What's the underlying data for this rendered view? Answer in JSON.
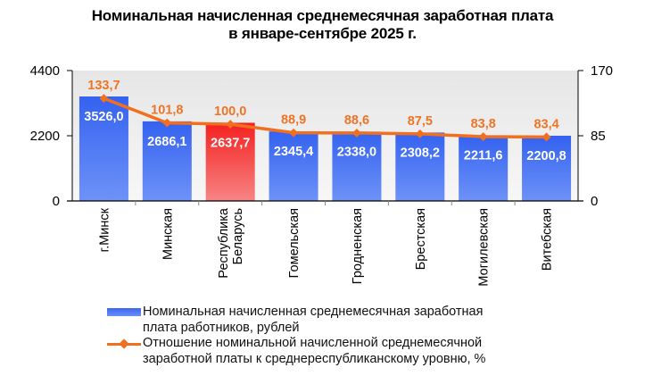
{
  "chart_data": {
    "type": "bar",
    "title": "Номинальная начисленная среднемесячная заработная плата",
    "subtitle": "в январе-сентябре 2025 г.",
    "categories": [
      "г.Минск",
      "Минская",
      "Республика Беларусь",
      "Гомельская",
      "Гродненская",
      "Брестская",
      "Могилевская",
      "Витебская"
    ],
    "category_lines": [
      [
        "г.Минск"
      ],
      [
        "Минская"
      ],
      [
        "Республика",
        "Беларусь"
      ],
      [
        "Гомельская"
      ],
      [
        "Гродненская"
      ],
      [
        "Брестская"
      ],
      [
        "Могилевская"
      ],
      [
        "Витебская"
      ]
    ],
    "series": [
      {
        "name": "Номинальная начисленная среднемесячная заработная плата работников, рублей",
        "legend_lines": [
          "Номинальная начисленная среднемесячная заработная",
          "плата работников, рублей"
        ],
        "type": "bar",
        "axis": "left",
        "values": [
          3526.0,
          2686.1,
          2637.7,
          2345.4,
          2338.0,
          2308.2,
          2211.6,
          2200.8
        ],
        "labels": [
          "3526,0",
          "2686,1",
          "2637,7",
          "2345,4",
          "2338,0",
          "2308,2",
          "2211,6",
          "2200,8"
        ],
        "color": "#3d68f2",
        "highlight_index": 2,
        "highlight_color": "#f52a2a"
      },
      {
        "name": "Отношение номинальной начисленной среднемесячной заработной платы к среднереспубликанскому уровню, %",
        "legend_lines": [
          "Отношение номинальной начисленной среднемесячной",
          "заработной платы к среднереспубликанскому уровню, %"
        ],
        "type": "line",
        "axis": "right",
        "values": [
          133.7,
          101.8,
          100.0,
          88.9,
          88.6,
          87.5,
          83.8,
          83.4
        ],
        "labels": [
          "133,7",
          "101,8",
          "100,0",
          "88,9",
          "88,6",
          "87,5",
          "83,8",
          "83,4"
        ],
        "color": "#f07020"
      }
    ],
    "y_left": {
      "ylim": [
        0,
        4400
      ],
      "ticks": [
        "0",
        "2200",
        "4400"
      ],
      "tick_values": [
        0,
        2200,
        4400
      ]
    },
    "y_right": {
      "ylim": [
        0,
        170
      ],
      "ticks": [
        "0",
        "85",
        "170"
      ],
      "tick_values": [
        0,
        85,
        170
      ]
    },
    "legend_position": "bottom",
    "grid": false
  }
}
